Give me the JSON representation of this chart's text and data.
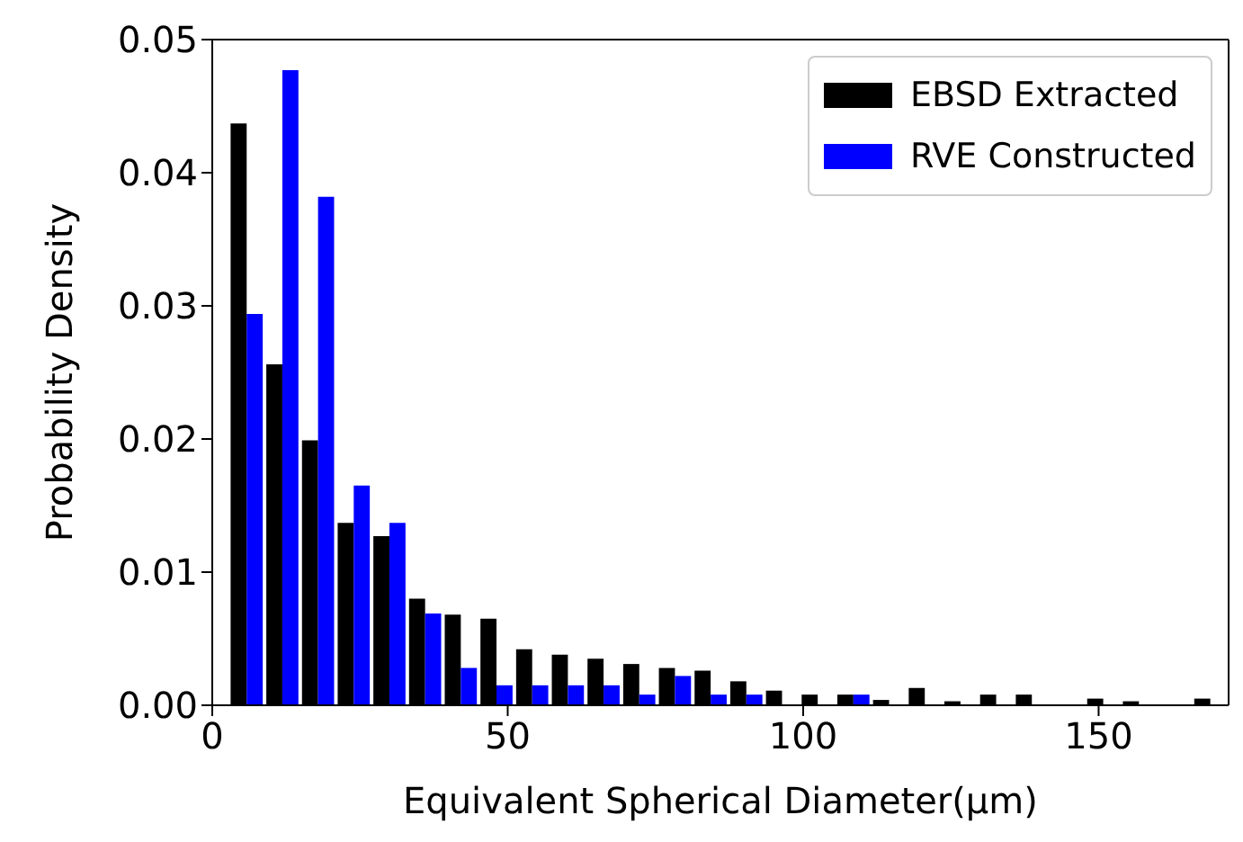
{
  "chart_data": {
    "type": "histogram",
    "xlabel": "Equivalent Spherical Diameter(μm)",
    "ylabel": "Probability Density",
    "bins": [
      2.8,
      8.84,
      14.88,
      20.92,
      26.96,
      33.0,
      39.04,
      45.08,
      51.12,
      57.16,
      63.2,
      69.24,
      75.28,
      81.32,
      87.36,
      93.4,
      99.44,
      105.48,
      111.52,
      117.56,
      123.6,
      129.64,
      135.68,
      141.72,
      147.76,
      153.8,
      159.84,
      165.88,
      171.92
    ],
    "series": [
      {
        "name": "EBSD Extracted",
        "color": "#000000",
        "values": [
          0.0437,
          0.0256,
          0.0199,
          0.0137,
          0.0127,
          0.008,
          0.0068,
          0.0065,
          0.0042,
          0.0038,
          0.0035,
          0.0031,
          0.0028,
          0.0026,
          0.0018,
          0.0011,
          0.0008,
          0.0008,
          0.0004,
          0.0013,
          0.0003,
          0.0008,
          0.0008,
          0,
          0.0005,
          0.0003,
          0,
          0.0005
        ]
      },
      {
        "name": "RVE Constructed",
        "color": "#0000ff",
        "values": [
          0.0294,
          0.0477,
          0.0382,
          0.0165,
          0.0137,
          0.0069,
          0.0028,
          0.0015,
          0.0015,
          0.0015,
          0.0015,
          0.0008,
          0.0022,
          0.0008,
          0.0008,
          0,
          0,
          0.0008,
          0,
          0,
          0,
          0,
          0,
          0,
          0,
          0,
          0,
          0
        ]
      }
    ],
    "xlim": [
      0,
      172
    ],
    "xticks": [
      0,
      50,
      100,
      150
    ],
    "ylim": [
      0,
      0.05
    ],
    "yticks": [
      {
        "value": 0,
        "label": "0.00"
      },
      {
        "value": 0.01,
        "label": "0.01"
      },
      {
        "value": 0.02,
        "label": "0.02"
      },
      {
        "value": 0.03,
        "label": "0.03"
      },
      {
        "value": 0.04,
        "label": "0.04"
      },
      {
        "value": 0.05,
        "label": "0.05"
      }
    ],
    "legend": "top right",
    "grid": false
  }
}
